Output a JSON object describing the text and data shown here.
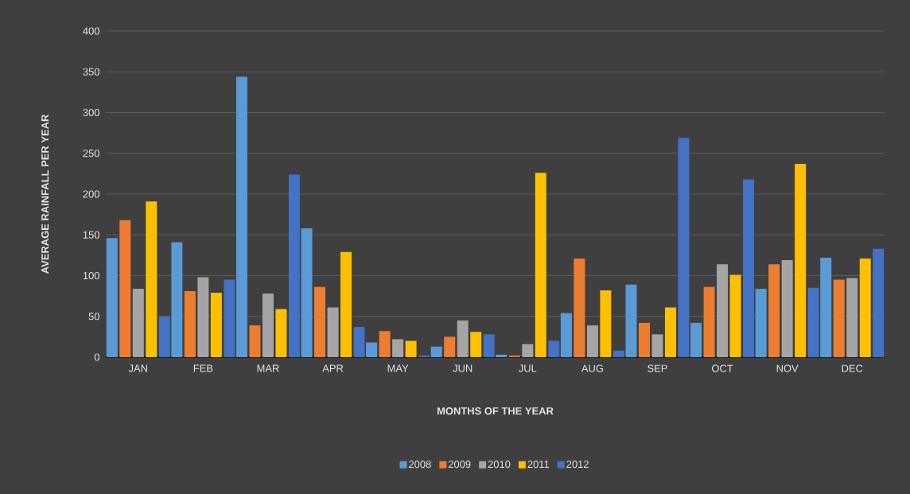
{
  "chart_data": {
    "type": "bar",
    "xlabel": "MONTHS OF THE YEAR",
    "ylabel": "AVERAGE RAINFALL PER YEAR",
    "categories": [
      "JAN",
      "FEB",
      "MAR",
      "APR",
      "MAY",
      "JUN",
      "JUL",
      "AUG",
      "SEP",
      "OCT",
      "NOV",
      "DEC"
    ],
    "series": [
      {
        "name": "2008",
        "color": "#5b9bd5",
        "values": [
          146,
          141,
          344,
          158,
          18,
          13,
          3,
          54,
          89,
          42,
          84,
          122
        ]
      },
      {
        "name": "2009",
        "color": "#ed7d31",
        "values": [
          168,
          81,
          39,
          86,
          32,
          25,
          2,
          121,
          42,
          86,
          114,
          95
        ]
      },
      {
        "name": "2010",
        "color": "#a5a5a5",
        "values": [
          84,
          98,
          78,
          61,
          22,
          45,
          16,
          39,
          28,
          114,
          119,
          97
        ]
      },
      {
        "name": "2011",
        "color": "#ffc000",
        "values": [
          191,
          79,
          59,
          129,
          20,
          31,
          226,
          82,
          61,
          101,
          237,
          121
        ]
      },
      {
        "name": "2012",
        "color": "#4472c4",
        "values": [
          50,
          95,
          224,
          37,
          2,
          28,
          20,
          8,
          269,
          218,
          85,
          133
        ]
      }
    ],
    "ylim": [
      0,
      400
    ],
    "yticks": [
      0,
      50,
      100,
      150,
      200,
      250,
      300,
      350,
      400
    ],
    "grid": "y",
    "legend": "bottom"
  }
}
